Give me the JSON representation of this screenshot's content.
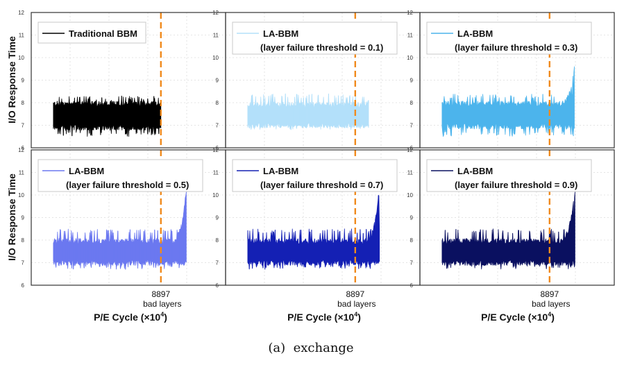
{
  "caption": "(a)  exchange",
  "y_label": "I/O Response Time",
  "x_label": "P/E Cycle (×10",
  "x_label_sup": "4",
  "x_label_end": ")",
  "marker_value": "8897",
  "marker_text": "bad layers",
  "colors": {
    "marker": "#f08a1c",
    "grid": "#dcdcdc",
    "frame": "#333333"
  },
  "chart_data": [
    {
      "type": "area",
      "row": 0,
      "col": 0,
      "legend": [
        "Traditional BBM"
      ],
      "color": "#000000",
      "ylim": [
        6,
        12
      ],
      "yticks": [
        6,
        7,
        8,
        9,
        10,
        11,
        12
      ],
      "x_start": 0,
      "x_end": 8897,
      "marker_x": 8897,
      "band_low": 6.9,
      "band_high": 7.95,
      "spike_low": 6.5,
      "spike_high": 8.3,
      "tail_start": 8897,
      "tail_peak": 8.1
    },
    {
      "type": "area",
      "row": 0,
      "col": 1,
      "legend": [
        "LA-BBM",
        "(layer failure threshold = 0.1)"
      ],
      "color": "#b3e0fa",
      "ylim": [
        6,
        12
      ],
      "yticks": [
        6,
        7,
        8,
        9,
        10,
        11,
        12
      ],
      "x_start": 0,
      "x_end": 10000,
      "marker_x": 8897,
      "band_low": 7.0,
      "band_high": 7.9,
      "spike_low": 6.8,
      "spike_high": 8.4,
      "tail_start": 9600,
      "tail_peak": 8.2
    },
    {
      "type": "area",
      "row": 0,
      "col": 2,
      "legend": [
        "LA-BBM",
        "(layer failure threshold = 0.3)"
      ],
      "color": "#4cb4ec",
      "ylim": [
        6,
        12
      ],
      "yticks": [
        6,
        7,
        8,
        9,
        10,
        11,
        12
      ],
      "x_start": 0,
      "x_end": 10950,
      "marker_x": 8897,
      "band_low": 6.95,
      "band_high": 7.95,
      "spike_low": 6.5,
      "spike_high": 8.4,
      "tail_start": 9700,
      "tail_peak": 9.5
    },
    {
      "type": "area",
      "row": 1,
      "col": 0,
      "legend": [
        "LA-BBM",
        "(layer failure threshold = 0.5)"
      ],
      "color": "#6b78f0",
      "ylim": [
        6,
        12
      ],
      "yticks": [
        6,
        7,
        8,
        9,
        10,
        11,
        12
      ],
      "x_start": 0,
      "x_end": 11000,
      "marker_x": 8897,
      "band_low": 7.0,
      "band_high": 7.95,
      "spike_low": 6.7,
      "spike_high": 8.5,
      "tail_start": 9700,
      "tail_peak": 10.2
    },
    {
      "type": "area",
      "row": 1,
      "col": 1,
      "legend": [
        "LA-BBM",
        "(layer failure threshold = 0.7)"
      ],
      "color": "#1420b4",
      "ylim": [
        6,
        12
      ],
      "yticks": [
        6,
        7,
        8,
        9,
        10,
        11,
        12
      ],
      "x_start": 0,
      "x_end": 10900,
      "marker_x": 8897,
      "band_low": 7.0,
      "band_high": 7.95,
      "spike_low": 6.7,
      "spike_high": 8.5,
      "tail_start": 9600,
      "tail_peak": 10.3
    },
    {
      "type": "area",
      "row": 1,
      "col": 2,
      "legend": [
        "LA-BBM",
        "(layer failure threshold = 0.9)"
      ],
      "color": "#0a1060",
      "ylim": [
        6,
        12
      ],
      "yticks": [
        6,
        7,
        8,
        9,
        10,
        11,
        12
      ],
      "x_start": 0,
      "x_end": 11000,
      "marker_x": 8897,
      "band_low": 7.0,
      "band_high": 7.95,
      "spike_low": 6.7,
      "spike_high": 8.5,
      "tail_start": 9600,
      "tail_peak": 10.2
    }
  ]
}
